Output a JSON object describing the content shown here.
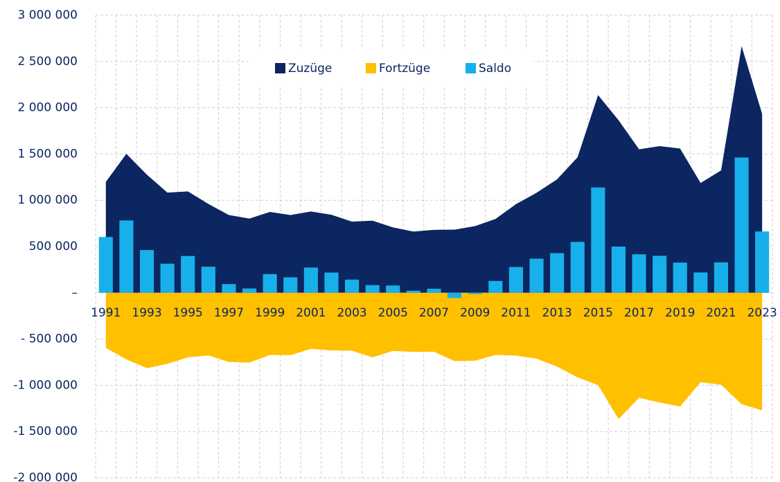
{
  "chart_data": {
    "type": "area-bar",
    "categories": [
      "1991",
      null,
      "1993",
      null,
      "1995",
      null,
      "1997",
      null,
      "1999",
      null,
      "2001",
      null,
      "2003",
      null,
      "2005",
      null,
      "2007",
      null,
      "2009",
      null,
      "2011",
      null,
      "2013",
      null,
      "2015",
      null,
      "2017",
      null,
      "2019",
      null,
      "2021",
      null,
      "2023"
    ],
    "series": [
      {
        "name": "Zuzüge",
        "color": "#0b2660",
        "kind": "area",
        "values": [
          1199000,
          1502000,
          1277000,
          1083000,
          1096000,
          960000,
          841000,
          802000,
          874000,
          841000,
          879000,
          843000,
          769000,
          780000,
          707000,
          662000,
          681000,
          682000,
          721000,
          798000,
          958000,
          1081000,
          1226000,
          1465000,
          2137000,
          1865000,
          1551000,
          1585000,
          1559000,
          1187000,
          1323000,
          2666000,
          1933000
        ]
      },
      {
        "name": "Fortzüge",
        "color": "#ffc000",
        "kind": "area",
        "values": [
          -596000,
          -720000,
          -815000,
          -768000,
          -698000,
          -677000,
          -747000,
          -755000,
          -672000,
          -674000,
          -606000,
          -623000,
          -626000,
          -698000,
          -628000,
          -639000,
          -637000,
          -738000,
          -734000,
          -671000,
          -679000,
          -712000,
          -798000,
          -914000,
          -998000,
          -1365000,
          -1135000,
          -1185000,
          -1230000,
          -966000,
          -994000,
          -1204000,
          -1270000
        ]
      },
      {
        "name": "Saldo",
        "color": "#18b0ea",
        "kind": "bar",
        "values": [
          603000,
          782000,
          462000,
          315000,
          398000,
          282000,
          94000,
          47000,
          202000,
          167000,
          273000,
          219000,
          143000,
          83000,
          79000,
          23000,
          44000,
          -56000,
          -13000,
          128000,
          279000,
          369000,
          429000,
          550000,
          1139000,
          500000,
          416000,
          400000,
          327000,
          220000,
          329000,
          1462000,
          663000
        ]
      }
    ],
    "ylim": [
      -2000000,
      3000000
    ],
    "yticks": [
      {
        "value": -2000000,
        "label": "-2 000 000"
      },
      {
        "value": -1500000,
        "label": "-1 500 000"
      },
      {
        "value": -1000000,
        "label": "-1 000 000"
      },
      {
        "value": -500000,
        "label": "- 500 000"
      },
      {
        "value": 0,
        "label": "–"
      },
      {
        "value": 500000,
        "label": "500 000"
      },
      {
        "value": 1000000,
        "label": "1 000 000"
      },
      {
        "value": 1500000,
        "label": "1 500 000"
      },
      {
        "value": 2000000,
        "label": "2 000 000"
      },
      {
        "value": 2500000,
        "label": "2 500 000"
      },
      {
        "value": 3000000,
        "label": "3 000 000"
      }
    ],
    "grid": true,
    "legend": "top"
  }
}
